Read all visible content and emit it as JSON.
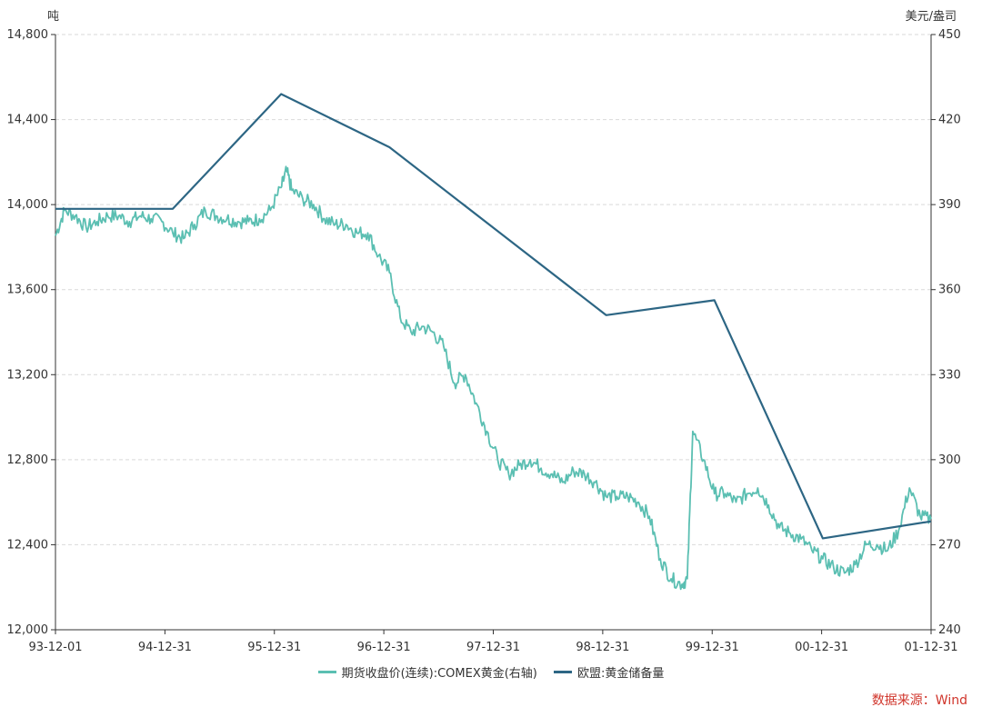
{
  "chart_data": {
    "type": "line",
    "left_unit": "吨",
    "right_unit": "美元/盎司",
    "x_tick_labels": [
      "93-12-01",
      "94-12-31",
      "95-12-31",
      "96-12-31",
      "97-12-31",
      "98-12-31",
      "99-12-31",
      "00-12-31",
      "01-12-31"
    ],
    "x_range": [
      1993.917,
      2002.0
    ],
    "left_axis": {
      "range": [
        12000,
        14800
      ],
      "ticks": [
        12000,
        12400,
        12800,
        13200,
        13600,
        14000,
        14400,
        14800
      ],
      "tick_labels": [
        "12,000",
        "12,400",
        "12,800",
        "13,200",
        "13,600",
        "14,000",
        "14,400",
        "14,800"
      ]
    },
    "right_axis": {
      "range": [
        240,
        450
      ],
      "ticks": [
        240,
        270,
        300,
        330,
        360,
        390,
        420,
        450
      ],
      "tick_labels": [
        "240",
        "270",
        "300",
        "330",
        "360",
        "390",
        "420",
        "450"
      ]
    },
    "series": [
      {
        "name": "期货收盘价(连续):COMEX黄金(右轴)",
        "axis": "right",
        "color": "#5bbfb2",
        "x": [
          1993.917,
          1994.0,
          1994.1,
          1994.2,
          1994.3,
          1994.4,
          1994.5,
          1994.6,
          1994.7,
          1994.8,
          1994.9,
          1995.0,
          1995.1,
          1995.2,
          1995.3,
          1995.4,
          1995.5,
          1995.6,
          1995.7,
          1995.8,
          1995.9,
          1996.0,
          1996.05,
          1996.1,
          1996.2,
          1996.3,
          1996.4,
          1996.5,
          1996.6,
          1996.7,
          1996.8,
          1996.9,
          1997.0,
          1997.1,
          1997.2,
          1997.3,
          1997.4,
          1997.5,
          1997.6,
          1997.7,
          1997.8,
          1997.9,
          1998.0,
          1998.1,
          1998.2,
          1998.3,
          1998.4,
          1998.5,
          1998.6,
          1998.7,
          1998.8,
          1998.9,
          1999.0,
          1999.1,
          1999.2,
          1999.3,
          1999.4,
          1999.5,
          1999.6,
          1999.7,
          1999.75,
          1999.8,
          1999.9,
          2000.0,
          2000.1,
          2000.2,
          2000.3,
          2000.4,
          2000.5,
          2000.6,
          2000.7,
          2000.8,
          2000.9,
          2001.0,
          2001.1,
          2001.2,
          2001.3,
          2001.4,
          2001.5,
          2001.6,
          2001.7,
          2001.8,
          2001.9,
          2002.0
        ],
        "values": [
          379,
          388,
          386,
          382,
          384,
          386,
          386,
          384,
          386,
          385,
          384,
          380,
          378,
          383,
          388,
          386,
          385,
          384,
          384,
          385,
          388,
          396,
          402,
          395,
          392,
          390,
          385,
          383,
          383,
          380,
          380,
          372,
          366,
          350,
          345,
          347,
          345,
          340,
          327,
          330,
          320,
          310,
          300,
          295,
          298,
          300,
          297,
          295,
          292,
          296,
          295,
          292,
          287,
          287,
          287,
          285,
          280,
          265,
          258,
          256,
          258,
          310,
          300,
          288,
          288,
          285,
          288,
          290,
          284,
          276,
          274,
          272,
          268,
          265,
          262,
          260,
          263,
          270,
          270,
          268,
          275,
          290,
          280,
          279
        ]
      },
      {
        "name": "欧盟:黄金储备量",
        "axis": "left",
        "color": "#2d6684",
        "x": [
          1993.917,
          1995.0,
          1996.0,
          1997.0,
          1999.0,
          2000.0,
          2001.0,
          2002.0
        ],
        "values": [
          13980,
          13980,
          14520,
          14270,
          13480,
          13550,
          12430,
          12510
        ]
      }
    ],
    "legend": [
      "期货收盘价(连续):COMEX黄金(右轴)",
      "欧盟:黄金储备量"
    ],
    "source": "数据来源：Wind"
  }
}
